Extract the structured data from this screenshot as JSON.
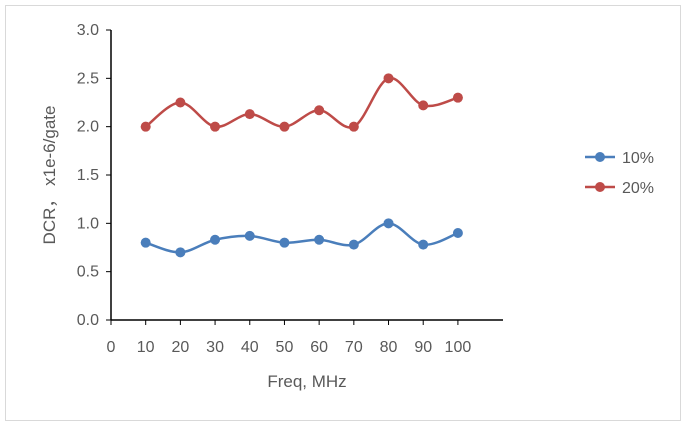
{
  "chart_data": {
    "type": "line",
    "title": "",
    "xlabel": "Freq, MHz",
    "ylabel": "DCR，  x1e-6/gate",
    "xlim": [
      0,
      113
    ],
    "ylim": [
      0,
      3.0
    ],
    "xticks": [
      0,
      10,
      20,
      30,
      40,
      50,
      60,
      70,
      80,
      90,
      100
    ],
    "yticks": [
      "0.0",
      "0.5",
      "1.0",
      "1.5",
      "2.0",
      "2.5",
      "3.0"
    ],
    "grid": false,
    "legend_position": "right",
    "x": [
      10,
      20,
      30,
      40,
      50,
      60,
      70,
      80,
      90,
      100
    ],
    "series": [
      {
        "name": "10%",
        "color": "#4a7ebb",
        "values": [
          0.8,
          0.7,
          0.83,
          0.87,
          0.8,
          0.83,
          0.78,
          1.0,
          0.78,
          0.9
        ]
      },
      {
        "name": "20%",
        "color": "#be4b48",
        "values": [
          2.0,
          2.25,
          2.0,
          2.13,
          2.0,
          2.17,
          2.0,
          2.5,
          2.22,
          2.3
        ]
      }
    ]
  }
}
